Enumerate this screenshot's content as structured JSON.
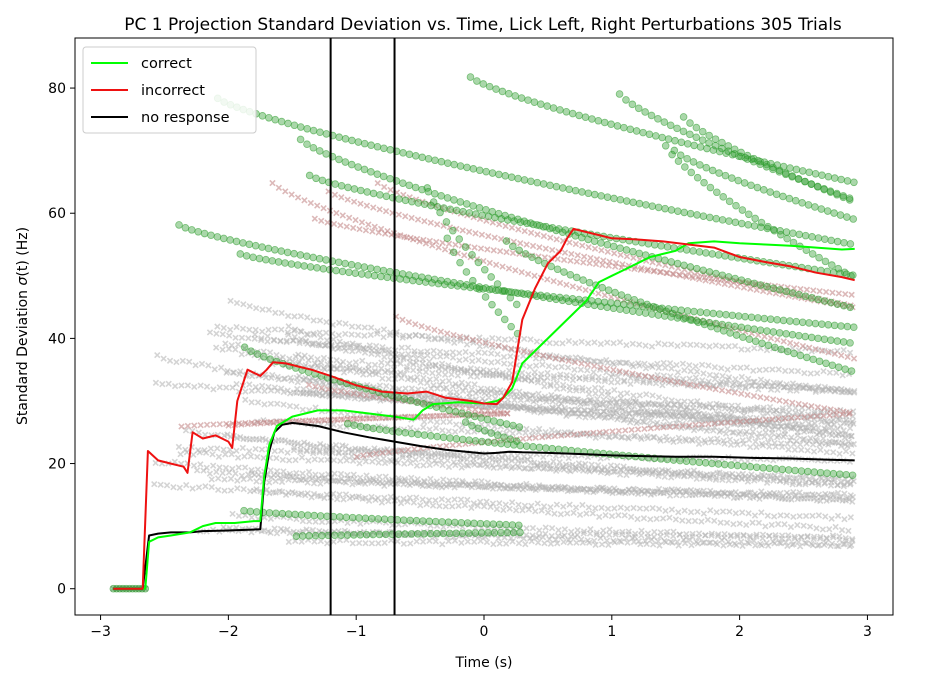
{
  "chart_data": {
    "type": "line",
    "title": "PC 1 Projection Standard Deviation vs. Time, Lick Left, Right Perturbations 305 Trials",
    "xlabel": "Time (s)",
    "ylabel_main": "Standard Deviation ",
    "ylabel_sigma": "σ",
    "ylabel_tail": "(t) (Hz)",
    "xlim": [
      -3.2,
      3.2
    ],
    "ylim": [
      -4.2,
      88
    ],
    "x_ticks": [
      -3,
      -2,
      -1,
      0,
      1,
      2,
      3
    ],
    "x_tick_labels": [
      "−3",
      "−2",
      "−1",
      "0",
      "1",
      "2",
      "3"
    ],
    "y_ticks": [
      0,
      20,
      40,
      60,
      80
    ],
    "y_tick_labels": [
      "0",
      "20",
      "40",
      "60",
      "80"
    ],
    "vertical_lines": [
      -1.2,
      -0.7
    ],
    "grid": false,
    "legend_position": "upper-left",
    "series": [
      {
        "name": "correct",
        "color": "#00ff00",
        "points": [
          [
            -2.9,
            0
          ],
          [
            -2.65,
            0
          ],
          [
            -2.62,
            7.5
          ],
          [
            -2.55,
            8.2
          ],
          [
            -2.45,
            8.5
          ],
          [
            -2.3,
            9
          ],
          [
            -2.2,
            10
          ],
          [
            -2.1,
            10.5
          ],
          [
            -1.95,
            10.5
          ],
          [
            -1.8,
            10.8
          ],
          [
            -1.75,
            10.8
          ],
          [
            -1.72,
            18
          ],
          [
            -1.68,
            23
          ],
          [
            -1.62,
            26
          ],
          [
            -1.5,
            27.5
          ],
          [
            -1.3,
            28.5
          ],
          [
            -1.1,
            28.5
          ],
          [
            -0.9,
            28
          ],
          [
            -0.7,
            27.5
          ],
          [
            -0.55,
            27
          ],
          [
            -0.48,
            28.5
          ],
          [
            -0.4,
            29.5
          ],
          [
            -0.2,
            29.8
          ],
          [
            0,
            29.6
          ],
          [
            0.1,
            30
          ],
          [
            0.15,
            30.5
          ],
          [
            0.22,
            32
          ],
          [
            0.3,
            36
          ],
          [
            0.4,
            38
          ],
          [
            0.5,
            40
          ],
          [
            0.6,
            42
          ],
          [
            0.7,
            44
          ],
          [
            0.8,
            46
          ],
          [
            0.9,
            49
          ],
          [
            1.0,
            50
          ],
          [
            1.1,
            51
          ],
          [
            1.2,
            52
          ],
          [
            1.3,
            53
          ],
          [
            1.4,
            53.5
          ],
          [
            1.5,
            54
          ],
          [
            1.6,
            55.2
          ],
          [
            1.8,
            55.5
          ],
          [
            2.0,
            55.2
          ],
          [
            2.2,
            55
          ],
          [
            2.4,
            54.8
          ],
          [
            2.6,
            54.5
          ],
          [
            2.8,
            54.2
          ],
          [
            2.9,
            54.3
          ]
        ]
      },
      {
        "name": "incorrect",
        "color": "#ee1111",
        "points": [
          [
            -2.9,
            0
          ],
          [
            -2.67,
            0
          ],
          [
            -2.63,
            22
          ],
          [
            -2.55,
            20.5
          ],
          [
            -2.45,
            20
          ],
          [
            -2.35,
            19.5
          ],
          [
            -2.32,
            18.5
          ],
          [
            -2.28,
            25
          ],
          [
            -2.2,
            24
          ],
          [
            -2.1,
            24.5
          ],
          [
            -2.0,
            23.5
          ],
          [
            -1.97,
            22.5
          ],
          [
            -1.93,
            30
          ],
          [
            -1.85,
            35
          ],
          [
            -1.75,
            34
          ],
          [
            -1.7,
            35
          ],
          [
            -1.65,
            36.2
          ],
          [
            -1.55,
            36
          ],
          [
            -1.45,
            35.5
          ],
          [
            -1.35,
            35
          ],
          [
            -1.2,
            34
          ],
          [
            -1.0,
            32.5
          ],
          [
            -0.8,
            31.5
          ],
          [
            -0.6,
            31.2
          ],
          [
            -0.45,
            31.5
          ],
          [
            -0.3,
            30.5
          ],
          [
            -0.1,
            30
          ],
          [
            0.0,
            29.6
          ],
          [
            0.1,
            29.5
          ],
          [
            0.15,
            30.5
          ],
          [
            0.22,
            33
          ],
          [
            0.3,
            43
          ],
          [
            0.4,
            48
          ],
          [
            0.5,
            52
          ],
          [
            0.6,
            54
          ],
          [
            0.65,
            56
          ],
          [
            0.7,
            57.5
          ],
          [
            0.8,
            57
          ],
          [
            0.9,
            56.5
          ],
          [
            1.0,
            56
          ],
          [
            1.2,
            55.8
          ],
          [
            1.4,
            55.5
          ],
          [
            1.6,
            55
          ],
          [
            1.8,
            54.5
          ],
          [
            2.0,
            53
          ],
          [
            2.2,
            52.2
          ],
          [
            2.4,
            51.5
          ],
          [
            2.6,
            50.5
          ],
          [
            2.8,
            49.8
          ],
          [
            2.9,
            49.3
          ]
        ]
      },
      {
        "name": "no response",
        "color": "#000000",
        "points": [
          [
            -2.9,
            0
          ],
          [
            -2.67,
            0
          ],
          [
            -2.62,
            8.5
          ],
          [
            -2.55,
            8.8
          ],
          [
            -2.45,
            9
          ],
          [
            -2.3,
            9
          ],
          [
            -2.2,
            9.2
          ],
          [
            -2.0,
            9.3
          ],
          [
            -1.75,
            9.5
          ],
          [
            -1.72,
            17
          ],
          [
            -1.68,
            22
          ],
          [
            -1.64,
            25
          ],
          [
            -1.58,
            26.2
          ],
          [
            -1.5,
            26.5
          ],
          [
            -1.3,
            26
          ],
          [
            -1.1,
            25
          ],
          [
            -0.9,
            24.2
          ],
          [
            -0.7,
            23.5
          ],
          [
            -0.5,
            22.8
          ],
          [
            -0.3,
            22.2
          ],
          [
            -0.1,
            21.8
          ],
          [
            0.0,
            21.6
          ],
          [
            0.1,
            21.7
          ],
          [
            0.2,
            21.9
          ],
          [
            0.3,
            21.8
          ],
          [
            0.5,
            21.7
          ],
          [
            0.8,
            21.5
          ],
          [
            1.0,
            21.3
          ],
          [
            1.2,
            21.2
          ],
          [
            1.5,
            21.1
          ],
          [
            1.8,
            21.1
          ],
          [
            2.1,
            20.9
          ],
          [
            2.4,
            20.8
          ],
          [
            2.7,
            20.6
          ],
          [
            2.9,
            20.5
          ]
        ]
      }
    ],
    "scatter_green_color": "#2a9a2a",
    "scatter_red_color": "#c08080",
    "scatter_gray_color": "#b0b0b0"
  }
}
